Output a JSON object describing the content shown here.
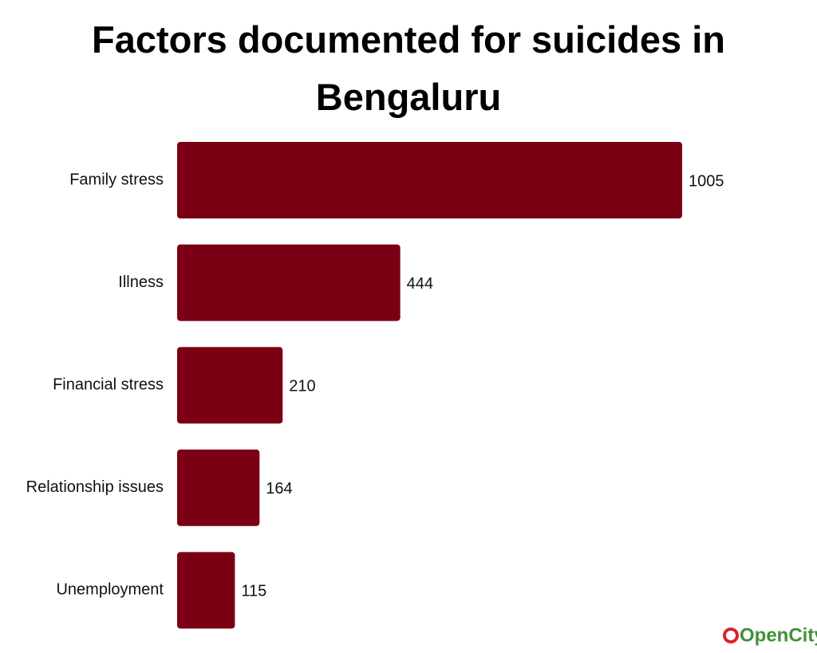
{
  "chart_data": {
    "type": "bar",
    "orientation": "horizontal",
    "title": "Factors documented for suicides in Bengaluru",
    "categories": [
      "Family stress",
      "Illness",
      "Financial stress",
      "Relationship issues",
      "Unemployment"
    ],
    "values": [
      1005,
      444,
      210,
      164,
      115
    ],
    "color": "#7b0014",
    "logo": "OpenCity"
  }
}
